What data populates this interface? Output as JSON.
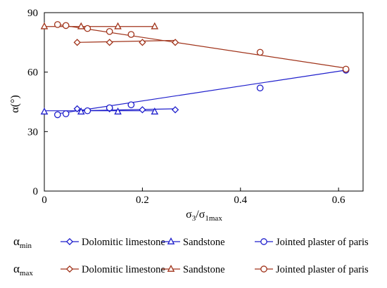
{
  "chart_data": {
    "type": "scatter",
    "xlabel": "σ3/σ1max",
    "xlabel_main": "σ",
    "xlabel_sub1": "3",
    "xlabel_slash": "/σ",
    "xlabel_sub2": "1max",
    "ylabel": "α(°)",
    "xlim": [
      0,
      0.65
    ],
    "ylim": [
      0,
      90
    ],
    "xticks": [
      0,
      0.2,
      0.4,
      0.6
    ],
    "xtick_labels": [
      "0",
      "0.2",
      "0.4",
      "0.6"
    ],
    "yticks": [
      0,
      30,
      60,
      90
    ],
    "ytick_labels": [
      "0",
      "30",
      "60",
      "90"
    ],
    "grid": false,
    "legend_position": "bottom",
    "legend_groups": [
      {
        "label": "αmin",
        "label_main": "α",
        "label_sub": "min"
      },
      {
        "label": "αmax",
        "label_main": "α",
        "label_sub": "max"
      }
    ],
    "colors": {
      "min": "#1f1fcc",
      "max": "#a0331a"
    },
    "series": [
      {
        "name": "Dolomitic limestone",
        "group": "min",
        "marker": "diamond",
        "x": [
          0.067,
          0.133,
          0.2,
          0.267
        ],
        "y": [
          41.5,
          41.5,
          41,
          41
        ],
        "fit": [
          [
            0.067,
            40.5
          ],
          [
            0.267,
            41.5
          ]
        ]
      },
      {
        "name": "Sandstone",
        "group": "min",
        "marker": "triangle",
        "x": [
          0,
          0.075,
          0.15,
          0.225
        ],
        "y": [
          40,
          40,
          40,
          40
        ],
        "fit": [
          [
            0,
            40.5
          ],
          [
            0.225,
            40.5
          ]
        ]
      },
      {
        "name": "Jointed plaster of paris",
        "group": "min",
        "marker": "circle",
        "x": [
          0.027,
          0.044,
          0.088,
          0.133,
          0.177,
          0.44,
          0.615
        ],
        "y": [
          38.5,
          39,
          40.5,
          42,
          43.5,
          52,
          61
        ],
        "fit": [
          [
            0.027,
            39
          ],
          [
            0.615,
            61
          ]
        ]
      },
      {
        "name": "Dolomitic limestone",
        "group": "max",
        "marker": "diamond",
        "x": [
          0.067,
          0.133,
          0.2,
          0.267
        ],
        "y": [
          75,
          75,
          75,
          75
        ],
        "fit": [
          [
            0.067,
            75
          ],
          [
            0.267,
            76
          ]
        ]
      },
      {
        "name": "Sandstone",
        "group": "max",
        "marker": "triangle",
        "x": [
          0,
          0.075,
          0.15,
          0.225
        ],
        "y": [
          83,
          83,
          83,
          83
        ],
        "fit": [
          [
            0,
            83
          ],
          [
            0.225,
            83
          ]
        ]
      },
      {
        "name": "Jointed plaster of paris",
        "group": "max",
        "marker": "circle",
        "x": [
          0.027,
          0.044,
          0.088,
          0.133,
          0.177,
          0.44,
          0.615
        ],
        "y": [
          84,
          83.5,
          82,
          80.5,
          79,
          70,
          61.5
        ],
        "fit": [
          [
            0.027,
            84
          ],
          [
            0.615,
            62
          ]
        ]
      }
    ]
  }
}
